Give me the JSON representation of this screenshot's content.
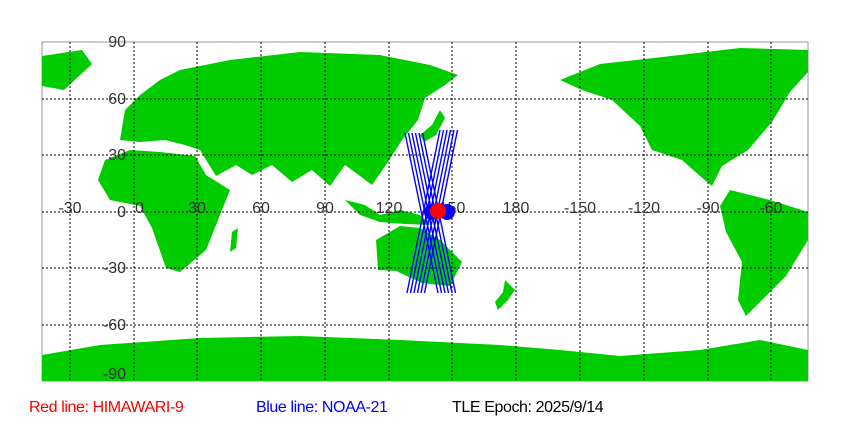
{
  "map": {
    "lat_labels": [
      "90",
      "60",
      "30",
      "0",
      "-30",
      "-60",
      "-90"
    ],
    "lon_labels": [
      "-30",
      "0",
      "30",
      "60",
      "90",
      "120",
      "150",
      "180",
      "-150",
      "-120",
      "-90",
      "-60"
    ],
    "colors": {
      "land": "#00cc00",
      "ocean": "#ffffff",
      "grid": "#000000",
      "himawari": "#ff0000",
      "noaa": "#0000ff"
    }
  },
  "legend": {
    "red": "Red line: HIMAWARI-9",
    "blue": "Blue line: NOAA-21",
    "epoch": "TLE Epoch: 2025/9/14"
  }
}
